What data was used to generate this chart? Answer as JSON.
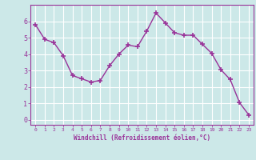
{
  "x": [
    0,
    1,
    2,
    3,
    4,
    5,
    6,
    7,
    8,
    9,
    10,
    11,
    12,
    13,
    14,
    15,
    16,
    17,
    18,
    19,
    20,
    21,
    22,
    23
  ],
  "y": [
    5.8,
    4.9,
    4.7,
    3.9,
    2.7,
    2.5,
    2.3,
    2.4,
    3.3,
    4.0,
    4.55,
    4.45,
    5.4,
    6.5,
    5.9,
    5.3,
    5.15,
    5.15,
    4.6,
    4.05,
    3.05,
    2.45,
    1.05,
    0.3
  ],
  "line_color": "#993399",
  "marker": "+",
  "bg_color": "#cce8e8",
  "grid_color": "#ffffff",
  "xlabel": "Windchill (Refroidissement éolien,°C)",
  "xlabel_color": "#993399",
  "tick_color": "#993399",
  "ylim": [
    -0.3,
    7.0
  ],
  "xlim": [
    -0.5,
    23.5
  ],
  "yticks": [
    0,
    1,
    2,
    3,
    4,
    5,
    6
  ],
  "xticks": [
    0,
    1,
    2,
    3,
    4,
    5,
    6,
    7,
    8,
    9,
    10,
    11,
    12,
    13,
    14,
    15,
    16,
    17,
    18,
    19,
    20,
    21,
    22,
    23
  ],
  "line_width": 1.0,
  "marker_size": 4
}
